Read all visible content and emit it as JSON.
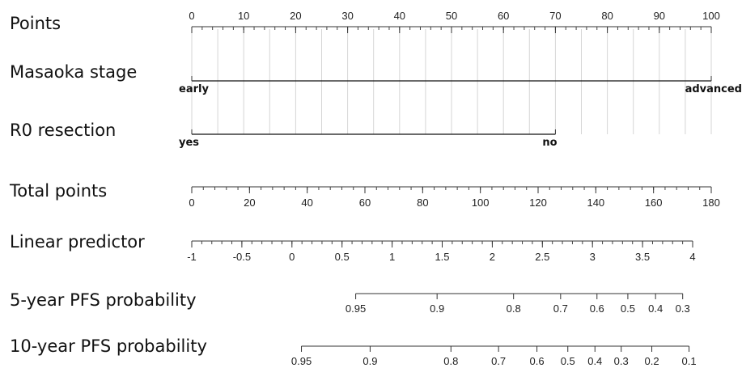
{
  "chart_data": {
    "type": "nomogram",
    "rows": [
      {
        "key": "points",
        "label": "Points",
        "kind": "scale",
        "domain": [
          0,
          100
        ],
        "ticks": [
          0,
          10,
          20,
          30,
          40,
          50,
          60,
          70,
          80,
          90,
          100
        ],
        "tick_labels": [
          "0",
          "10",
          "20",
          "30",
          "40",
          "50",
          "60",
          "70",
          "80",
          "90",
          "100"
        ]
      },
      {
        "key": "masaoka",
        "label": "Masaoka stage",
        "kind": "variable",
        "levels": [
          {
            "label": "early",
            "points": 0
          },
          {
            "label": "advanced",
            "points": 100
          }
        ]
      },
      {
        "key": "r0",
        "label": "R0 resection",
        "kind": "variable",
        "levels": [
          {
            "label": "yes",
            "points": 0
          },
          {
            "label": "no",
            "points": 70
          }
        ]
      },
      {
        "key": "total",
        "label": "Total points",
        "kind": "scale",
        "domain": [
          0,
          180
        ],
        "ticks": [
          0,
          20,
          40,
          60,
          80,
          100,
          120,
          140,
          160,
          180
        ],
        "tick_labels": [
          "0",
          "20",
          "40",
          "60",
          "80",
          "100",
          "120",
          "140",
          "160",
          "180"
        ]
      },
      {
        "key": "lp",
        "label": "Linear predictor",
        "kind": "scale",
        "domain": [
          -1,
          4
        ],
        "ticks": [
          -1,
          -0.5,
          0,
          0.5,
          1,
          1.5,
          2,
          2.5,
          3,
          3.5,
          4
        ],
        "tick_labels": [
          "-1",
          "-0.5",
          "0",
          "0.5",
          "1",
          "1.5",
          "2",
          "2.5",
          "3",
          "3.5",
          "4"
        ]
      },
      {
        "key": "pfs5",
        "label": "5-year PFS probability",
        "kind": "probability",
        "tick_labels": [
          "0.95",
          "0.9",
          "0.8",
          "0.7",
          "0.6",
          "0.5",
          "0.4",
          "0.3"
        ],
        "tick_values": [
          0.95,
          0.9,
          0.8,
          0.7,
          0.6,
          0.5,
          0.4,
          0.3
        ],
        "tick_total_points": [
          56.8,
          85.0,
          111.5,
          127.8,
          140.4,
          151.1,
          160.7,
          170.1
        ]
      },
      {
        "key": "pfs10",
        "label": "10-year PFS probability",
        "kind": "probability",
        "tick_labels": [
          "0.95",
          "0.9",
          "0.8",
          "0.7",
          "0.6",
          "0.5",
          "0.4",
          "0.3",
          "0.2",
          "0.1"
        ],
        "tick_values": [
          0.95,
          0.9,
          0.8,
          0.7,
          0.6,
          0.5,
          0.4,
          0.3,
          0.2,
          0.1
        ],
        "tick_total_points": [
          38.0,
          61.8,
          89.8,
          106.3,
          119.6,
          130.3,
          139.7,
          148.8,
          159.4,
          172.3
        ]
      }
    ]
  }
}
